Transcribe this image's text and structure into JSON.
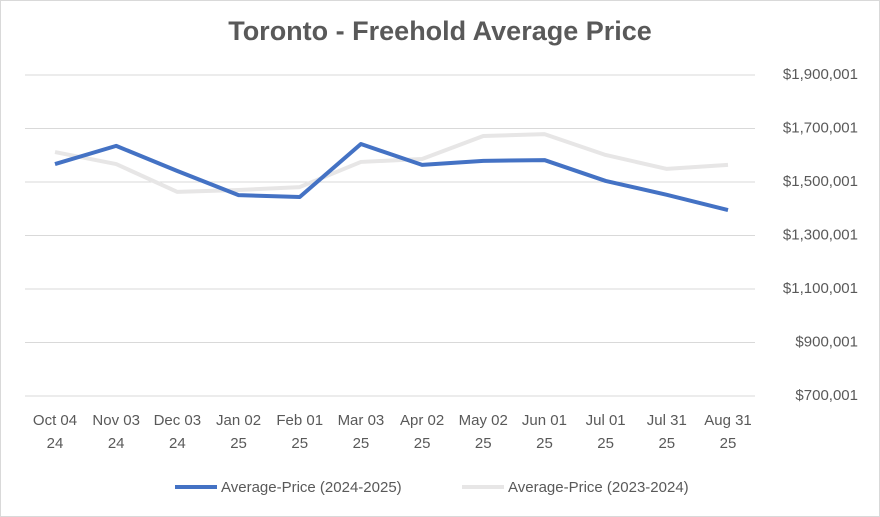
{
  "chart_data": {
    "type": "line",
    "title": "Toronto - Freehold Average Price",
    "categories": [
      [
        "Oct 04",
        "24"
      ],
      [
        "Nov 03",
        "24"
      ],
      [
        "Dec 03",
        "24"
      ],
      [
        "Jan 02",
        "25"
      ],
      [
        "Feb 01",
        "25"
      ],
      [
        "Mar 03",
        "25"
      ],
      [
        "Apr 02",
        "25"
      ],
      [
        "May 02",
        "25"
      ],
      [
        "Jun 01",
        "25"
      ],
      [
        "Jul 01",
        "25"
      ],
      [
        "Jul 31",
        "25"
      ],
      [
        "Aug 31",
        "25"
      ]
    ],
    "series": [
      {
        "name": "Average-Price (2024-2025)",
        "color": "#4472c4",
        "values": [
          1567000,
          1635000,
          1541000,
          1451000,
          1444000,
          1642000,
          1564000,
          1579000,
          1582000,
          1504000,
          1452000,
          1395000
        ]
      },
      {
        "name": "Average-Price (2023-2024)",
        "color": "#e7e6e6",
        "values": [
          1612000,
          1567000,
          1463000,
          1470000,
          1481000,
          1575000,
          1586000,
          1672000,
          1679000,
          1601000,
          1549000,
          1564000
        ]
      }
    ],
    "ylim": [
      700001,
      1900001
    ],
    "yticks": [
      {
        "value": 700001,
        "label": "$700,001"
      },
      {
        "value": 900001,
        "label": "$900,001"
      },
      {
        "value": 1100001,
        "label": "$1,100,001"
      },
      {
        "value": 1300001,
        "label": "$1,300,001"
      },
      {
        "value": 1500001,
        "label": "$1,500,001"
      },
      {
        "value": 1700001,
        "label": "$1,700,001"
      },
      {
        "value": 1900001,
        "label": "$1,900,001"
      }
    ],
    "grid": true
  }
}
